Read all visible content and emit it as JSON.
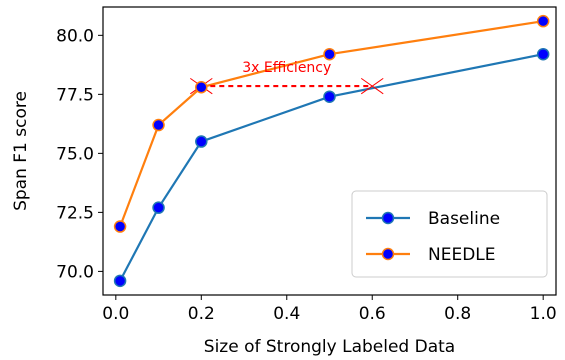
{
  "chart_data": {
    "type": "line",
    "xlabel": "Size of Strongly Labeled Data",
    "ylabel": "Span F1 score",
    "xlim": [
      -0.03,
      1.03
    ],
    "ylim": [
      69.0,
      81.2
    ],
    "xticks": [
      0.0,
      0.2,
      0.4,
      0.6,
      0.8,
      1.0
    ],
    "xtick_labels": [
      "0.0",
      "0.2",
      "0.4",
      "0.6",
      "0.8",
      "1.0"
    ],
    "yticks": [
      70.0,
      72.5,
      75.0,
      77.5,
      80.0
    ],
    "ytick_labels": [
      "70.0",
      "72.5",
      "75.0",
      "77.5",
      "80.0"
    ],
    "grid": false,
    "legend_position": "lower-right",
    "series": [
      {
        "name": "Baseline",
        "color": "#1f77b4",
        "marker_color": "#0000ff",
        "x": [
          0.01,
          0.1,
          0.2,
          0.5,
          1.0
        ],
        "y": [
          69.6,
          72.7,
          75.5,
          77.4,
          79.2
        ]
      },
      {
        "name": "NEEDLE",
        "color": "#ff7f0e",
        "marker_color": "#0000ff",
        "x": [
          0.01,
          0.1,
          0.2,
          0.5,
          1.0
        ],
        "y": [
          71.9,
          76.2,
          77.8,
          79.2,
          80.6
        ]
      }
    ],
    "annotation": {
      "text": "3x Efficiency",
      "color": "#ff0000",
      "x_start": 0.2,
      "x_end": 0.6,
      "y": 77.85
    }
  }
}
